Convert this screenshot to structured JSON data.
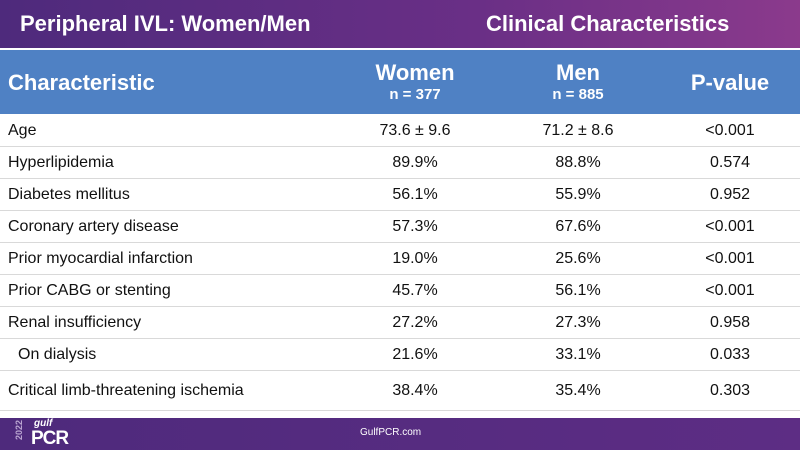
{
  "header": {
    "title": "Peripheral IVL: Women/Men",
    "subtitle": "Clinical Characteristics"
  },
  "table": {
    "columns": [
      {
        "label": "Characteristic"
      },
      {
        "label": "Women",
        "n": "n = 377"
      },
      {
        "label": "Men",
        "n": "n = 885"
      },
      {
        "label": "P-value"
      }
    ],
    "rows": [
      [
        "Age",
        "73.6 ± 9.6",
        "71.2 ± 8.6",
        "<0.001"
      ],
      [
        "Hyperlipidemia",
        "89.9%",
        "88.8%",
        "0.574"
      ],
      [
        "Diabetes mellitus",
        "56.1%",
        "55.9%",
        "0.952"
      ],
      [
        "Coronary artery disease",
        "57.3%",
        "67.6%",
        "<0.001"
      ],
      [
        "Prior myocardial infarction",
        "19.0%",
        "25.6%",
        "<0.001"
      ],
      [
        "Prior CABG or stenting",
        "45.7%",
        "56.1%",
        "<0.001"
      ],
      [
        "Renal insufficiency",
        "27.2%",
        "27.3%",
        "0.958"
      ],
      [
        "On dialysis",
        "21.6%",
        "33.1%",
        "0.033"
      ],
      [
        "Critical limb-threatening ischemia",
        "38.4%",
        "35.4%",
        "0.303"
      ]
    ]
  },
  "footer": {
    "url": "GulfPCR.com",
    "logo": {
      "year": "2022",
      "brand": "gulf",
      "name": "PCR"
    }
  }
}
